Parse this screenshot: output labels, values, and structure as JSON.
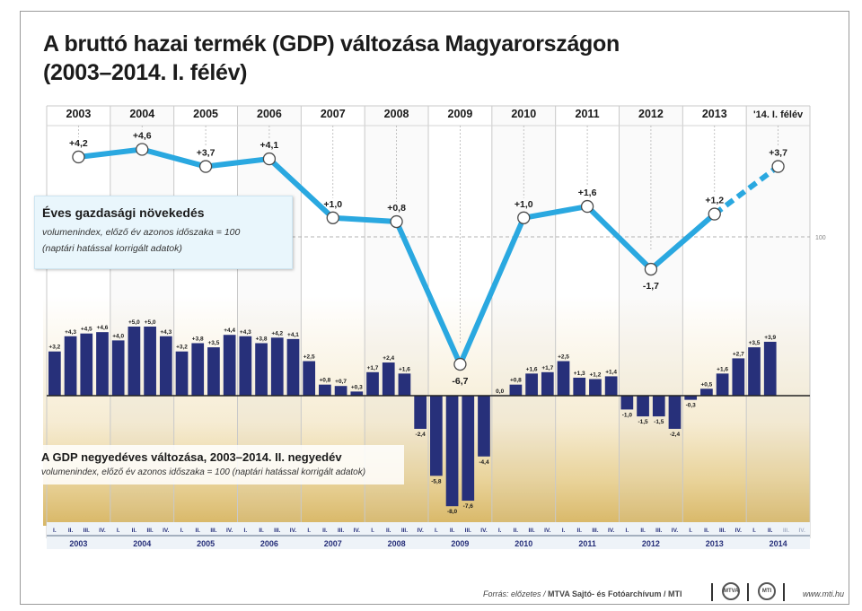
{
  "title_line1": "A bruttó hazai termék (GDP) változása Magyarországon",
  "title_line2": "(2003–2014. I. félév)",
  "annual_box": {
    "heading": "Éves gazdasági növekedés",
    "sub1": "volumenindex, előző év azonos időszaka = 100",
    "sub2": "(naptári hatással korrigált adatok)"
  },
  "quarter_box": {
    "heading": "A GDP negyedéves változása, 2003–2014. II. negyedév",
    "sub": "volumenindex, előző év azonos időszaka = 100 (naptári hatással korrigált adatok)"
  },
  "ref_label": "100",
  "footer": {
    "source_prefix": "Forrás: előzetes / ",
    "source_bold": "MTVA Sajtó- és Fotóarchívum / MTI",
    "logo1": "MTVA",
    "logo2": "MTI",
    "url": "www.mti.hu"
  },
  "colors": {
    "line": "#2aa8e0",
    "bar": "#27307a",
    "label_bg": "#f4e7c4"
  },
  "chart_data": [
    {
      "type": "line",
      "name": "Éves gazdasági növekedés",
      "x": [
        "2003",
        "2004",
        "2005",
        "2006",
        "2007",
        "2008",
        "2009",
        "2010",
        "2011",
        "2012",
        "2013",
        "'14. I. félév"
      ],
      "values": [
        4.2,
        4.6,
        3.7,
        4.1,
        1.0,
        0.8,
        -6.7,
        1.0,
        1.6,
        -1.7,
        1.2,
        3.7
      ],
      "labels": [
        "+4,2",
        "+4,6",
        "+3,7",
        "+4,1",
        "+1,0",
        "+0,8",
        "-6,7",
        "+1,0",
        "+1,6",
        "-1,7",
        "+1,2",
        "+3,7"
      ],
      "dashed_last_segment": true
    },
    {
      "type": "bar",
      "name": "A GDP negyedéves változása",
      "years": [
        "2003",
        "2004",
        "2005",
        "2006",
        "2007",
        "2008",
        "2009",
        "2010",
        "2011",
        "2012",
        "2013",
        "2014"
      ],
      "quarter_labels": [
        "I.",
        "II.",
        "III.",
        "IV."
      ],
      "values": [
        3.2,
        4.3,
        4.5,
        4.6,
        4.0,
        5.0,
        5.0,
        4.3,
        3.2,
        3.8,
        3.5,
        4.4,
        4.3,
        3.8,
        4.2,
        4.1,
        2.5,
        0.8,
        0.7,
        0.3,
        1.7,
        2.4,
        1.6,
        -2.4,
        -5.8,
        -8.0,
        -7.6,
        -4.4,
        0.0,
        0.8,
        1.6,
        1.7,
        2.5,
        1.3,
        1.2,
        1.4,
        -1.0,
        -1.5,
        -1.5,
        -2.4,
        -0.3,
        0.5,
        1.6,
        2.7,
        3.5,
        3.9
      ],
      "labels": [
        "+3,2",
        "+4,3",
        "+4,5",
        "+4,6",
        "+4,0",
        "+5,0",
        "+5,0",
        "+4,3",
        "+3,2",
        "+3,8",
        "+3,5",
        "+4,4",
        "+4,3",
        "+3,8",
        "+4,2",
        "+4,1",
        "+2,5",
        "+0,8",
        "+0,7",
        "+0,3",
        "+1,7",
        "+2,4",
        "+1,6",
        "-2,4",
        "-5,8",
        "-8,0",
        "-7,6",
        "-4,4",
        "0,0",
        "+0,8",
        "+1,6",
        "+1,7",
        "+2,5",
        "+1,3",
        "+1,2",
        "+1,4",
        "-1,0",
        "-1,5",
        "-1,5",
        "-2,4",
        "-0,3",
        "+0,5",
        "+1,6",
        "+2,7",
        "+3,5",
        "+3,9"
      ]
    }
  ]
}
